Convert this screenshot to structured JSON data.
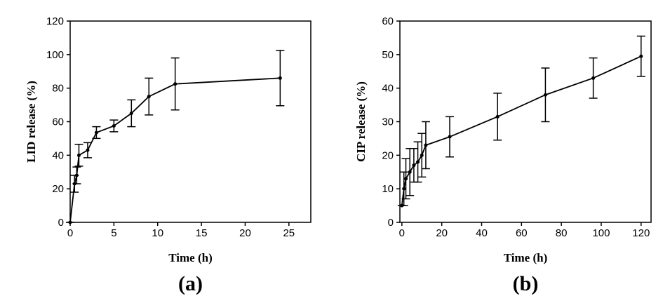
{
  "chart_data": [
    {
      "type": "line",
      "x_label": "Time (h)",
      "y_label": "LID release (%)",
      "panel_label": "(a)",
      "color": "#000000",
      "x": [
        0,
        0.5,
        0.75,
        1,
        2,
        3,
        5,
        7,
        9,
        12,
        24
      ],
      "values": [
        0,
        23,
        28,
        40,
        43,
        53.5,
        57.5,
        65,
        75,
        82.5,
        86
      ],
      "errors": [
        0,
        5,
        5,
        6.5,
        4.5,
        3.5,
        3.5,
        8,
        11,
        15.5,
        16.5
      ],
      "xlim": [
        0,
        27.5
      ],
      "xticks": [
        0,
        5,
        10,
        15,
        20,
        25
      ],
      "ylim": [
        0,
        120
      ],
      "yticks": [
        0,
        20,
        40,
        60,
        80,
        100,
        120
      ]
    },
    {
      "type": "line",
      "x_label": "Time (h)",
      "y_label": "CIP release (%)",
      "panel_label": "(b)",
      "color": "#000000",
      "x": [
        0,
        1,
        2,
        4,
        6,
        8,
        10,
        12,
        24,
        48,
        72,
        96,
        120
      ],
      "values": [
        5,
        10,
        13,
        15,
        17,
        18,
        20,
        23,
        25.5,
        31.5,
        38,
        43,
        49.5
      ],
      "errors": [
        0,
        5,
        6,
        7,
        5,
        6,
        6.5,
        7,
        6,
        7,
        8,
        6,
        6
      ],
      "xlim": [
        -1,
        125
      ],
      "xticks": [
        0,
        20,
        40,
        60,
        80,
        100,
        120
      ],
      "ylim": [
        0,
        60
      ],
      "yticks": [
        0,
        10,
        20,
        30,
        40,
        50,
        60
      ]
    }
  ]
}
